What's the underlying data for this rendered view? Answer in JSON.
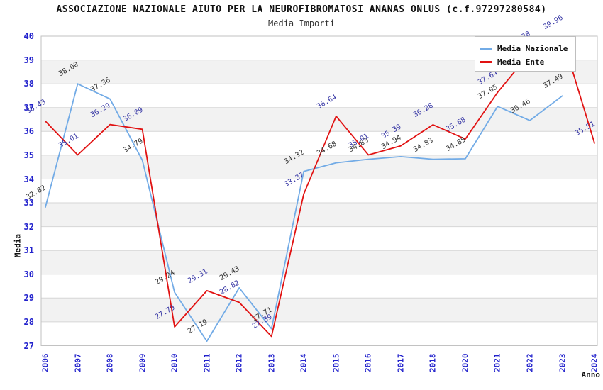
{
  "chart_data": {
    "type": "line",
    "title": "ASSOCIAZIONE NAZIONALE AIUTO PER LA NEUROFIBROMATOSI ANANAS ONLUS (c.f.97297280584)",
    "subtitle": "Media Importi",
    "xlabel": "Anno",
    "ylabel": "Media",
    "ylim": [
      27,
      40
    ],
    "y_ticks": [
      "40",
      "39",
      "38",
      "37",
      "36",
      "35",
      "34",
      "33",
      "32",
      "31",
      "30",
      "29",
      "28",
      "27"
    ],
    "categories": [
      "2006",
      "2007",
      "2008",
      "2009",
      "2010",
      "2011",
      "2012",
      "2013",
      "2014",
      "2015",
      "2016",
      "2017",
      "2018",
      "2020",
      "2021",
      "2022",
      "2023",
      "2024"
    ],
    "series": [
      {
        "name": "Media Nazionale",
        "color": "#72abe6",
        "label_color": "#333333",
        "values": [
          32.82,
          38.0,
          37.36,
          34.79,
          29.24,
          27.19,
          29.43,
          27.71,
          34.32,
          34.68,
          34.83,
          34.94,
          34.83,
          34.85,
          37.05,
          36.46,
          37.49,
          null
        ]
      },
      {
        "name": "Media Ente",
        "color": "#e11212",
        "label_color": "#3434a4",
        "values": [
          36.43,
          35.01,
          36.29,
          36.09,
          27.79,
          29.31,
          28.82,
          27.39,
          33.37,
          36.64,
          35.01,
          35.39,
          36.28,
          35.68,
          37.64,
          39.28,
          39.96,
          35.51
        ]
      }
    ],
    "legend_position": "top-right",
    "grid": "horizontal-zebra",
    "tick_color": "#2222cc",
    "stripe_color": "#f2f2f2",
    "gridline_color": "#d6d6d6",
    "border_color": "#c2c2c2"
  }
}
